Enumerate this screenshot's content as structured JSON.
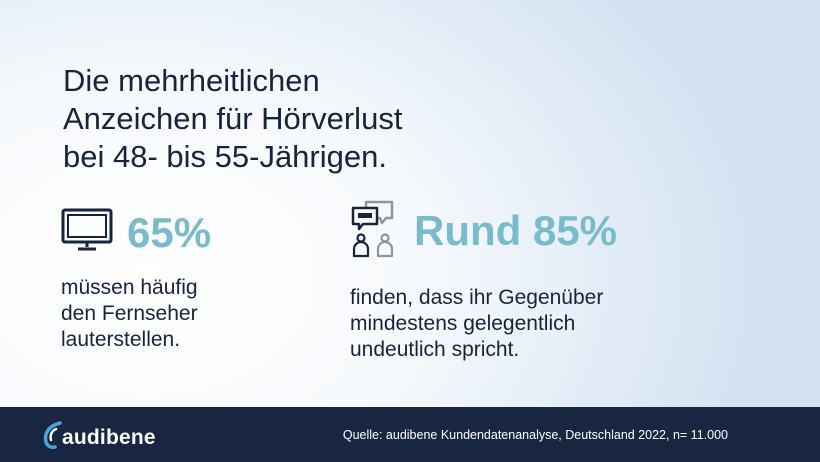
{
  "title_lines": [
    "Die mehrheitlichen",
    "Anzeichen für Hörverlust",
    "bei 48- bis 55-Jährigen."
  ],
  "stats": [
    {
      "icon": "tv-icon",
      "value": "65%",
      "description_lines": [
        "müssen häufig",
        "den Fernseher",
        "lauterstellen."
      ]
    },
    {
      "icon": "conversation-icon",
      "value": "Rund 85%",
      "description_lines": [
        "finden, dass ihr Gegenüber",
        "mindestens gelegentlich",
        "undeutlich spricht."
      ]
    }
  ],
  "footer": {
    "logo_text": "audibene",
    "source": "Quelle: audibene Kundendatenanalyse, Deutschland 2022, n= 11.000"
  },
  "colors": {
    "navy": "#16243f",
    "accent": "#78bccb",
    "footer_bg": "#192642"
  }
}
